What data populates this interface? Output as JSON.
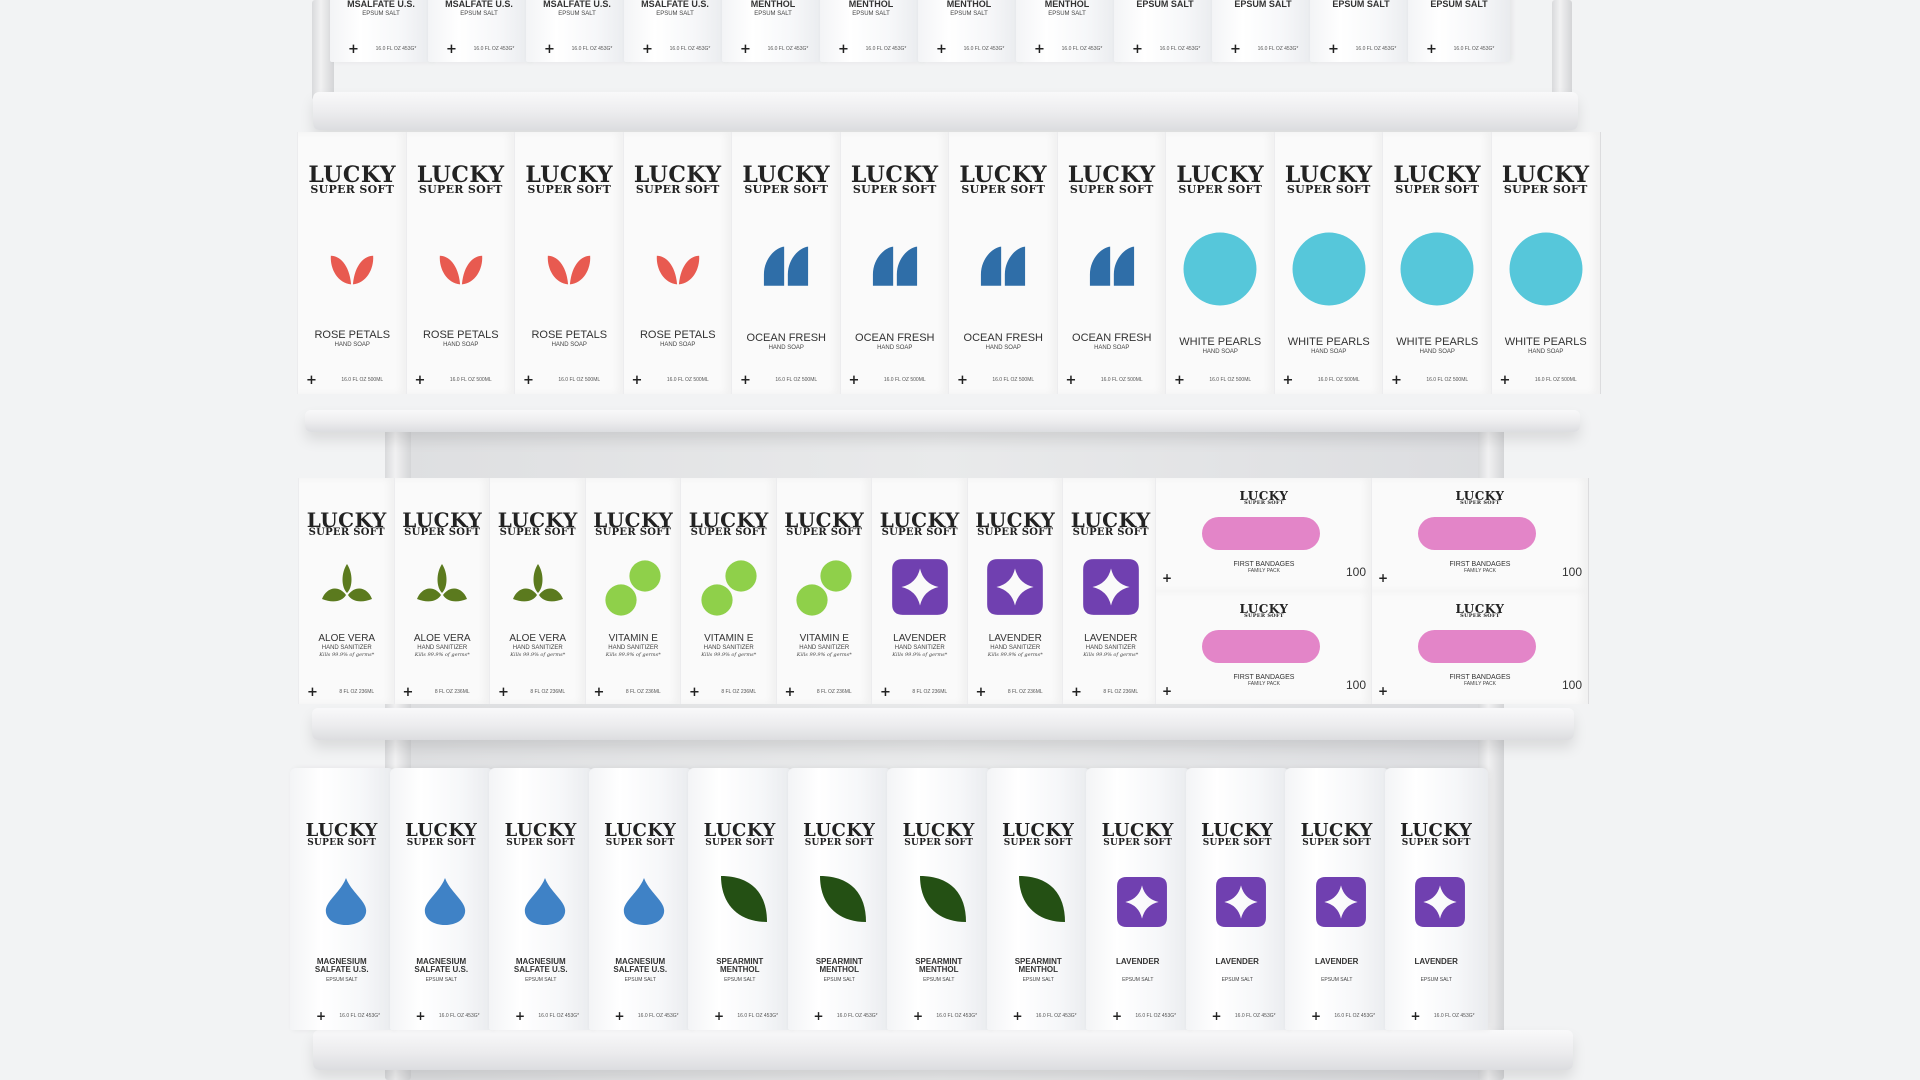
{
  "brand": {
    "name": "LUCKY",
    "sub": "SUPER SOFT"
  },
  "colors": {
    "rose": "#e85a50",
    "ocean": "#2f6ea8",
    "pearl": "#56c7da",
    "aloe": "#5b7a1e",
    "vitamin": "#8fd04a",
    "lavender": "#7040b0",
    "bandage": "#e385c8",
    "magnesium": "#3f82c6",
    "spearmint": "#245014"
  },
  "rows": {
    "top": {
      "products": [
        {
          "name": "MSALFATE U.S.",
          "type": "EPSUM SALT",
          "vol": "16.0 FL OZ 453G*",
          "count": 4
        },
        {
          "name": "MENTHOL",
          "type": "EPSUM SALT",
          "vol": "16.0 FL OZ 453G*",
          "count": 4
        },
        {
          "name": "EPSUM SALT",
          "type": "",
          "vol": "16.0 FL OZ 453G*",
          "count": 4
        }
      ]
    },
    "soap": {
      "products": [
        {
          "name": "ROSE PETALS",
          "type": "HAND SOAP",
          "vol": "16.0 FL OZ 500ML",
          "icon": "leaf-pair-icon",
          "color": "#e85a50",
          "count": 4
        },
        {
          "name": "OCEAN FRESH",
          "type": "HAND SOAP",
          "vol": "16.0 FL OZ 500ML",
          "icon": "wave-icon",
          "color": "#2f6ea8",
          "count": 4
        },
        {
          "name": "WHITE PEARLS",
          "type": "HAND SOAP",
          "vol": "16.0 FL OZ 500ML",
          "icon": "circle-icon",
          "color": "#56c7da",
          "count": 4
        }
      ]
    },
    "sanitizer": {
      "products": [
        {
          "name": "ALOE VERA",
          "type": "HAND SANITIZER",
          "tagline": "Kills 99.9% of germs*",
          "vol": "8 FL OZ 236ML",
          "icon": "sprout-icon",
          "color": "#5b7a1e",
          "count": 3
        },
        {
          "name": "VITAMIN E",
          "type": "HAND SANITIZER",
          "tagline": "Kills 99.9% of germs*",
          "vol": "8 FL OZ 236ML",
          "icon": "two-dots-icon",
          "color": "#8fd04a",
          "count": 3
        },
        {
          "name": "LAVENDER",
          "type": "HAND SANITIZER",
          "tagline": "Kills 99.9% of germs*",
          "vol": "8 FL OZ 236ML",
          "icon": "star-square-icon",
          "color": "#7040b0",
          "count": 3
        }
      ],
      "bandages": {
        "name": "FIRST BANDAGES",
        "type": "FAMILY PACK",
        "count_label": "100",
        "color": "#e385c8",
        "boxes": 4
      }
    },
    "bottom": {
      "products": [
        {
          "name": "MAGNESIUM SALFATE U.S.",
          "type": "EPSUM SALT",
          "vol": "16.0 FL OZ 453G*",
          "icon": "droplet-icon",
          "color": "#3f82c6",
          "count": 4
        },
        {
          "name": "SPEARMINT MENTHOL",
          "type": "EPSUM SALT",
          "vol": "16.0 FL OZ 453G*",
          "icon": "leaf-icon",
          "color": "#245014",
          "count": 4
        },
        {
          "name": "LAVENDER",
          "type": "EPSUM SALT",
          "vol": "16.0 FL OZ 453G*",
          "icon": "star-square-icon",
          "color": "#7040b0",
          "count": 4
        }
      ]
    }
  }
}
